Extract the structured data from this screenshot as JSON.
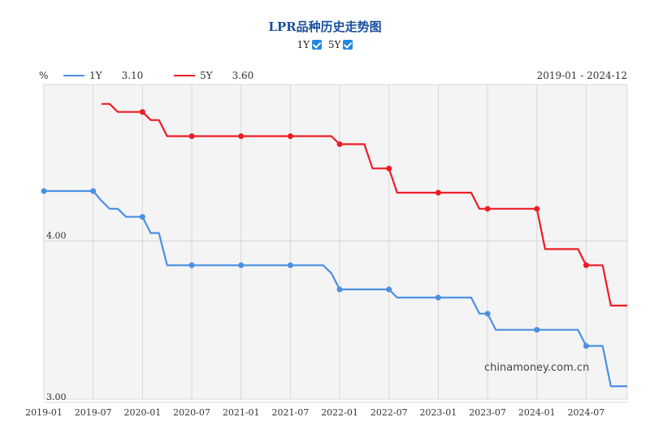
{
  "title": "LPR品种历史走势图",
  "toggles": [
    {
      "label": "1Y",
      "checked": true
    },
    {
      "label": "5Y",
      "checked": true
    }
  ],
  "legend": {
    "unit": "%",
    "items": [
      {
        "name": "1Y",
        "value": "3.10",
        "color": "#4a90e2"
      },
      {
        "name": "5Y",
        "value": "3.60",
        "color": "#ee1c25"
      }
    ],
    "range": "2019-01 - 2024-12"
  },
  "watermark": "chinamoney.com.cn",
  "chart_data": {
    "type": "line",
    "x_tick_labels": [
      "2019-01",
      "2019-07",
      "2020-01",
      "2020-07",
      "2021-01",
      "2021-07",
      "2022-01",
      "2022-07",
      "2023-01",
      "2023-07",
      "2024-01",
      "2024-07"
    ],
    "y_tick_labels": [
      "3.00",
      "4.00"
    ],
    "xlim": [
      "2019-01",
      "2024-12"
    ],
    "ylim": [
      3.0,
      4.9
    ],
    "grid": true,
    "series": [
      {
        "name": "1Y",
        "color": "#4a90e2",
        "points": [
          [
            "2019-01",
            4.31
          ],
          [
            "2019-07",
            4.31
          ],
          [
            "2019-08",
            4.25
          ],
          [
            "2019-09",
            4.2
          ],
          [
            "2019-10",
            4.2
          ],
          [
            "2019-11",
            4.15
          ],
          [
            "2019-12",
            4.15
          ],
          [
            "2020-01",
            4.15
          ],
          [
            "2020-02",
            4.05
          ],
          [
            "2020-03",
            4.05
          ],
          [
            "2020-04",
            3.85
          ],
          [
            "2020-05",
            3.85
          ],
          [
            "2020-06",
            3.85
          ],
          [
            "2020-07",
            3.85
          ],
          [
            "2020-12",
            3.85
          ],
          [
            "2021-01",
            3.85
          ],
          [
            "2021-07",
            3.85
          ],
          [
            "2021-11",
            3.85
          ],
          [
            "2021-12",
            3.8
          ],
          [
            "2022-01",
            3.7
          ],
          [
            "2022-06",
            3.7
          ],
          [
            "2022-07",
            3.7
          ],
          [
            "2022-08",
            3.65
          ],
          [
            "2022-12",
            3.65
          ],
          [
            "2023-01",
            3.65
          ],
          [
            "2023-05",
            3.65
          ],
          [
            "2023-06",
            3.55
          ],
          [
            "2023-07",
            3.55
          ],
          [
            "2023-08",
            3.45
          ],
          [
            "2023-12",
            3.45
          ],
          [
            "2024-01",
            3.45
          ],
          [
            "2024-06",
            3.45
          ],
          [
            "2024-07",
            3.35
          ],
          [
            "2024-09",
            3.35
          ],
          [
            "2024-10",
            3.1
          ],
          [
            "2024-12",
            3.1
          ]
        ],
        "markers": [
          "2019-01",
          "2019-07",
          "2020-01",
          "2020-07",
          "2021-01",
          "2021-07",
          "2022-01",
          "2022-07",
          "2023-01",
          "2023-07",
          "2024-01",
          "2024-07"
        ]
      },
      {
        "name": "5Y",
        "color": "#ee1c25",
        "points": [
          [
            "2019-08",
            4.85
          ],
          [
            "2019-09",
            4.85
          ],
          [
            "2019-10",
            4.8
          ],
          [
            "2019-11",
            4.8
          ],
          [
            "2020-01",
            4.8
          ],
          [
            "2020-02",
            4.75
          ],
          [
            "2020-03",
            4.75
          ],
          [
            "2020-04",
            4.65
          ],
          [
            "2020-07",
            4.65
          ],
          [
            "2021-01",
            4.65
          ],
          [
            "2021-07",
            4.65
          ],
          [
            "2021-12",
            4.65
          ],
          [
            "2022-01",
            4.6
          ],
          [
            "2022-04",
            4.6
          ],
          [
            "2022-05",
            4.45
          ],
          [
            "2022-06",
            4.45
          ],
          [
            "2022-07",
            4.45
          ],
          [
            "2022-08",
            4.3
          ],
          [
            "2022-12",
            4.3
          ],
          [
            "2023-01",
            4.3
          ],
          [
            "2023-05",
            4.3
          ],
          [
            "2023-06",
            4.2
          ],
          [
            "2023-07",
            4.2
          ],
          [
            "2023-12",
            4.2
          ],
          [
            "2024-01",
            4.2
          ],
          [
            "2024-02",
            3.95
          ],
          [
            "2024-06",
            3.95
          ],
          [
            "2024-07",
            3.85
          ],
          [
            "2024-09",
            3.85
          ],
          [
            "2024-10",
            3.6
          ],
          [
            "2024-12",
            3.6
          ]
        ],
        "markers": [
          "2020-01",
          "2020-07",
          "2021-01",
          "2021-07",
          "2022-01",
          "2022-07",
          "2023-01",
          "2023-07",
          "2024-01",
          "2024-07"
        ]
      }
    ]
  }
}
